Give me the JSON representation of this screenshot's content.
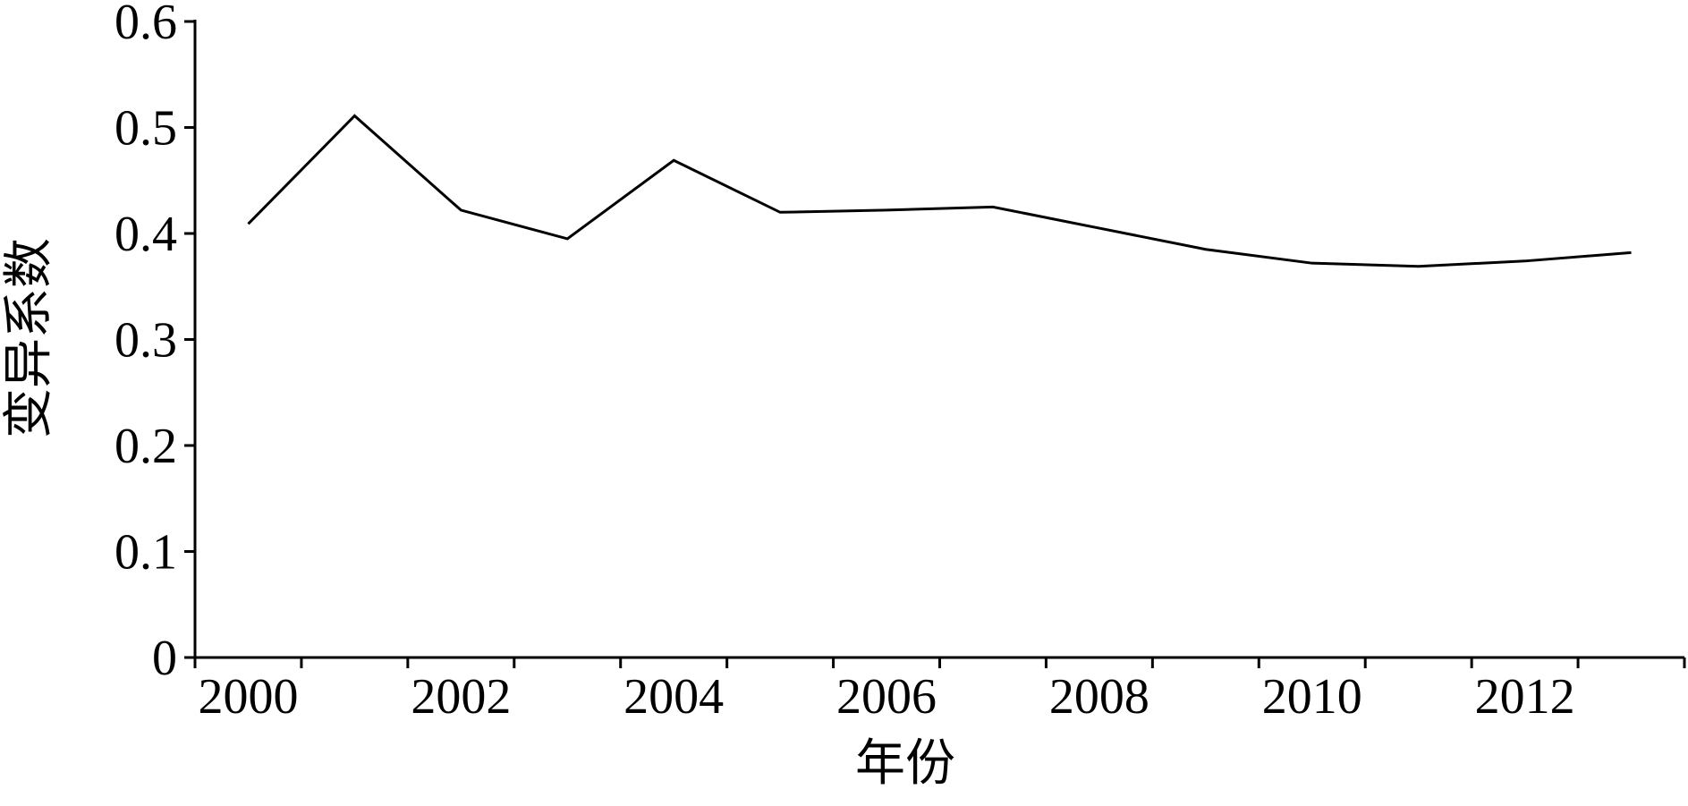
{
  "chart_data": {
    "type": "line",
    "x_label": "年份",
    "y_label": "变异系数",
    "categories": [
      "2000",
      null,
      "2002",
      null,
      "2004",
      null,
      "2006",
      null,
      "2008",
      null,
      "2010",
      null,
      "2012",
      null
    ],
    "series": [
      {
        "color": "#000000",
        "values": [
          0.409,
          0.511,
          0.422,
          0.395,
          0.469,
          0.42,
          0.422,
          0.425,
          0.405,
          0.385,
          0.372,
          0.369,
          0.374,
          0.382
        ]
      }
    ],
    "ylim": [
      0,
      0.6
    ],
    "yticks": [
      0,
      0.1,
      0.2,
      0.3,
      0.4,
      0.5,
      0.6
    ],
    "grid": false
  }
}
